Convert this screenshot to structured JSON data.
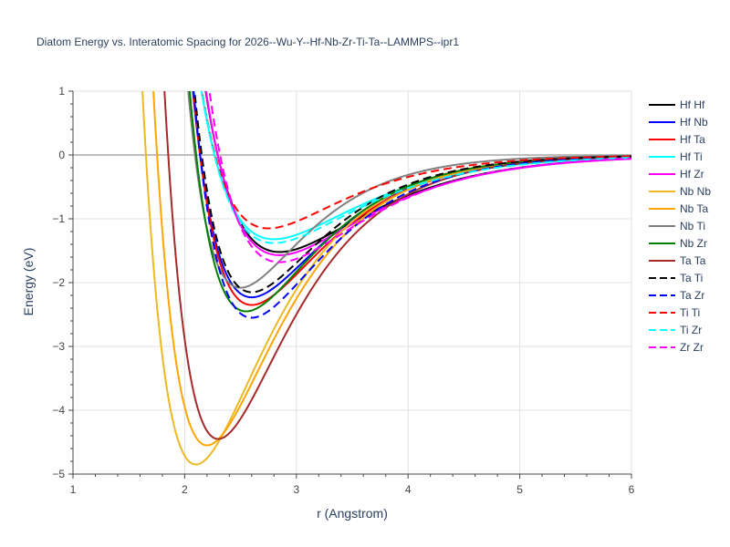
{
  "chart_data": {
    "type": "line",
    "title": "Diatom Energy vs. Interatomic Spacing for 2026--Wu-Y--Hf-Nb-Zr-Ti-Ta--LAMMPS--ipr1",
    "xlabel": "r (Angstrom)",
    "ylabel": "Energy (eV)",
    "xlim": [
      1,
      6
    ],
    "ylim": [
      -5,
      1
    ],
    "xticks": [
      1,
      2,
      3,
      4,
      5,
      6
    ],
    "yticks": [
      1,
      0,
      -1,
      -2,
      -3,
      -4,
      -5
    ],
    "grid": true,
    "legend_position": "right",
    "series": [
      {
        "name": "Hf Hf",
        "color": "#000000",
        "dash": "solid",
        "rmin": 2.85,
        "emin": -1.52,
        "width": 1.25,
        "r0": 2.12
      },
      {
        "name": "Hf Nb",
        "color": "#0000ff",
        "dash": "solid",
        "rmin": 2.6,
        "emin": -2.23,
        "width": 1.5,
        "r0": 1.98
      },
      {
        "name": "Hf Ta",
        "color": "#ff0000",
        "dash": "solid",
        "rmin": 2.6,
        "emin": -2.35,
        "width": 1.5,
        "r0": 1.97
      },
      {
        "name": "Hf Ti",
        "color": "#00ffff",
        "dash": "solid",
        "rmin": 2.8,
        "emin": -1.32,
        "width": 1.3,
        "r0": 2.1
      },
      {
        "name": "Hf Zr",
        "color": "#ff00ff",
        "dash": "solid",
        "rmin": 2.85,
        "emin": -1.57,
        "width": 1.25,
        "r0": 2.1
      },
      {
        "name": "Nb Nb",
        "color": "#ebb924",
        "dash": "solid",
        "rmin": 2.1,
        "emin": -4.85,
        "width": 1.55,
        "r0": 1.6
      },
      {
        "name": "Nb Ta",
        "color": "#ffa500",
        "dash": "solid",
        "rmin": 2.2,
        "emin": -4.55,
        "width": 1.55,
        "r0": 1.73
      },
      {
        "name": "Nb Ti",
        "color": "#808080",
        "dash": "solid",
        "rmin": 2.5,
        "emin": -2.08,
        "width": 1.7,
        "r0": 1.93
      },
      {
        "name": "Nb Zr",
        "color": "#008000",
        "dash": "solid",
        "rmin": 2.55,
        "emin": -2.45,
        "width": 1.55,
        "r0": 1.92
      },
      {
        "name": "Ta Ta",
        "color": "#a52a2a",
        "dash": "solid",
        "rmin": 2.3,
        "emin": -4.45,
        "width": 1.55,
        "r0": 1.77
      },
      {
        "name": "Ta Ti",
        "color": "#000000",
        "dash": "dash",
        "rmin": 2.6,
        "emin": -2.15,
        "width": 1.55,
        "r0": 1.95
      },
      {
        "name": "Ta Zr",
        "color": "#0000ff",
        "dash": "dash",
        "rmin": 2.6,
        "emin": -2.55,
        "width": 1.5,
        "r0": 1.95
      },
      {
        "name": "Ti Ti",
        "color": "#ff0000",
        "dash": "dash",
        "rmin": 2.75,
        "emin": -1.15,
        "width": 1.45,
        "r0": 2.05
      },
      {
        "name": "Ti Zr",
        "color": "#00ffff",
        "dash": "dash",
        "rmin": 2.8,
        "emin": -1.38,
        "width": 1.3,
        "r0": 2.1
      },
      {
        "name": "Zr Zr",
        "color": "#ff00ff",
        "dash": "dash",
        "rmin": 2.85,
        "emin": -1.68,
        "width": 1.3,
        "r0": 2.1
      }
    ]
  }
}
